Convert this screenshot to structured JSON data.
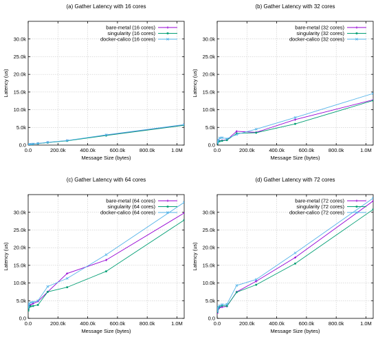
{
  "chart_data": [
    {
      "type": "line",
      "title": "(a) Gather Latency with 16 cores",
      "xlabel": "Message Size (bytes)",
      "ylabel": "Latency (us)",
      "xlim": [
        0,
        1048576
      ],
      "ylim": [
        0,
        35000
      ],
      "xticks": [
        0,
        200000,
        400000,
        600000,
        800000,
        1000000
      ],
      "xtick_labels": [
        "0.0",
        "200.0k",
        "400.0k",
        "600.0k",
        "800.0k",
        "1.0M"
      ],
      "yticks": [
        0,
        5000,
        10000,
        15000,
        20000,
        25000,
        30000
      ],
      "ytick_labels": [
        "0.0",
        "5.0k",
        "10.0k",
        "15.0k",
        "20.0k",
        "25.0k",
        "30.0k"
      ],
      "grid": true,
      "legend_position": "top-right",
      "x": [
        1024,
        2048,
        4096,
        8192,
        16384,
        32768,
        65536,
        131072,
        262144,
        524288,
        1048576
      ],
      "series": [
        {
          "name": "bare-metal (16 cores)",
          "color": "#9400d3",
          "values": [
            100,
            110,
            120,
            150,
            200,
            280,
            450,
            750,
            1250,
            2800,
            5700
          ]
        },
        {
          "name": "singularity (16 cores)",
          "color": "#009e73",
          "values": [
            90,
            100,
            115,
            140,
            190,
            270,
            430,
            720,
            1200,
            2700,
            5600
          ]
        },
        {
          "name": "docker-calico (16 cores)",
          "color": "#56b4e9",
          "values": [
            120,
            130,
            150,
            180,
            230,
            320,
            480,
            800,
            1300,
            2900,
            5800
          ]
        }
      ]
    },
    {
      "type": "line",
      "title": "(b) Gather Latency with 32 cores",
      "xlabel": "Message Size (bytes)",
      "ylabel": "Latency (us)",
      "xlim": [
        0,
        1048576
      ],
      "ylim": [
        0,
        35000
      ],
      "xticks": [
        0,
        200000,
        400000,
        600000,
        800000,
        1000000
      ],
      "xtick_labels": [
        "0.0",
        "200.0k",
        "400.0k",
        "600.0k",
        "800.0k",
        "1.0M"
      ],
      "yticks": [
        0,
        5000,
        10000,
        15000,
        20000,
        25000,
        30000
      ],
      "ytick_labels": [
        "0.0",
        "5.0k",
        "10.0k",
        "15.0k",
        "20.0k",
        "25.0k",
        "30.0k"
      ],
      "grid": true,
      "legend_position": "top-right",
      "x": [
        1024,
        2048,
        4096,
        8192,
        16384,
        32768,
        65536,
        131072,
        262144,
        524288,
        1048576
      ],
      "series": [
        {
          "name": "bare-metal (32 cores)",
          "color": "#9400d3",
          "values": [
            500,
            700,
            900,
            1100,
            1200,
            1300,
            1500,
            3900,
            3600,
            7200,
            12800
          ]
        },
        {
          "name": "singularity (32 cores)",
          "color": "#009e73",
          "values": [
            400,
            600,
            800,
            1000,
            1100,
            1200,
            1400,
            3300,
            3500,
            6000,
            12600
          ]
        },
        {
          "name": "docker-calico (32 cores)",
          "color": "#56b4e9",
          "values": [
            600,
            900,
            1200,
            1500,
            2000,
            2100,
            1800,
            3000,
            4500,
            7800,
            14600
          ]
        }
      ]
    },
    {
      "type": "line",
      "title": "(c) Gather Latency with 64 cores",
      "xlabel": "Message Size (bytes)",
      "ylabel": "Latency (us)",
      "xlim": [
        0,
        1048576
      ],
      "ylim": [
        0,
        35000
      ],
      "xticks": [
        0,
        200000,
        400000,
        600000,
        800000,
        1000000
      ],
      "xtick_labels": [
        "0.0",
        "200.0k",
        "400.0k",
        "600.0k",
        "800.0k",
        "1.0M"
      ],
      "yticks": [
        0,
        5000,
        10000,
        15000,
        20000,
        25000,
        30000
      ],
      "ytick_labels": [
        "0.0",
        "5.0k",
        "10.0k",
        "15.0k",
        "20.0k",
        "25.0k",
        "30.0k"
      ],
      "grid": true,
      "legend_position": "top-right",
      "x": [
        1024,
        2048,
        4096,
        8192,
        16384,
        32768,
        65536,
        131072,
        262144,
        524288,
        1048576
      ],
      "series": [
        {
          "name": "bare-metal (64 cores)",
          "color": "#9400d3",
          "values": [
            2500,
            3200,
            3500,
            3600,
            3800,
            4200,
            4800,
            7500,
            12700,
            16500,
            29800
          ]
        },
        {
          "name": "singularity (64 cores)",
          "color": "#009e73",
          "values": [
            2200,
            2800,
            3100,
            3300,
            3400,
            3500,
            3800,
            7500,
            8800,
            13300,
            27800
          ]
        },
        {
          "name": "docker-calico (64 cores)",
          "color": "#56b4e9",
          "values": [
            3000,
            3600,
            4000,
            4200,
            4500,
            4600,
            5000,
            9000,
            11300,
            18000,
            32800
          ]
        }
      ]
    },
    {
      "type": "line",
      "title": "(d) Gather Latency with 72 cores",
      "xlabel": "Message Size (bytes)",
      "ylabel": "Latency (us)",
      "xlim": [
        0,
        1048576
      ],
      "ylim": [
        0,
        35000
      ],
      "xticks": [
        0,
        200000,
        400000,
        600000,
        800000,
        1000000
      ],
      "xtick_labels": [
        "0.0",
        "200.0k",
        "400.0k",
        "600.0k",
        "800.0k",
        "1.0M"
      ],
      "yticks": [
        0,
        5000,
        10000,
        15000,
        20000,
        25000,
        30000
      ],
      "ytick_labels": [
        "0.0",
        "5.0k",
        "10.0k",
        "15.0k",
        "20.0k",
        "25.0k",
        "30.0k"
      ],
      "grid": true,
      "legend_position": "top-right",
      "x": [
        1024,
        2048,
        4096,
        8192,
        16384,
        32768,
        65536,
        131072,
        262144,
        524288,
        1048576
      ],
      "series": [
        {
          "name": "bare-metal (72 cores)",
          "color": "#9400d3",
          "values": [
            1500,
            2000,
            2400,
            2700,
            3000,
            3200,
            3400,
            7500,
            10500,
            17200,
            33200
          ]
        },
        {
          "name": "singularity (72 cores)",
          "color": "#009e73",
          "values": [
            1800,
            2300,
            2700,
            3000,
            3300,
            3600,
            3500,
            7400,
            9500,
            15500,
            30800
          ]
        },
        {
          "name": "docker-calico (72 cores)",
          "color": "#56b4e9",
          "values": [
            2000,
            2600,
            3000,
            3300,
            3600,
            3900,
            4000,
            9300,
            11000,
            18500,
            34000
          ]
        }
      ]
    }
  ]
}
